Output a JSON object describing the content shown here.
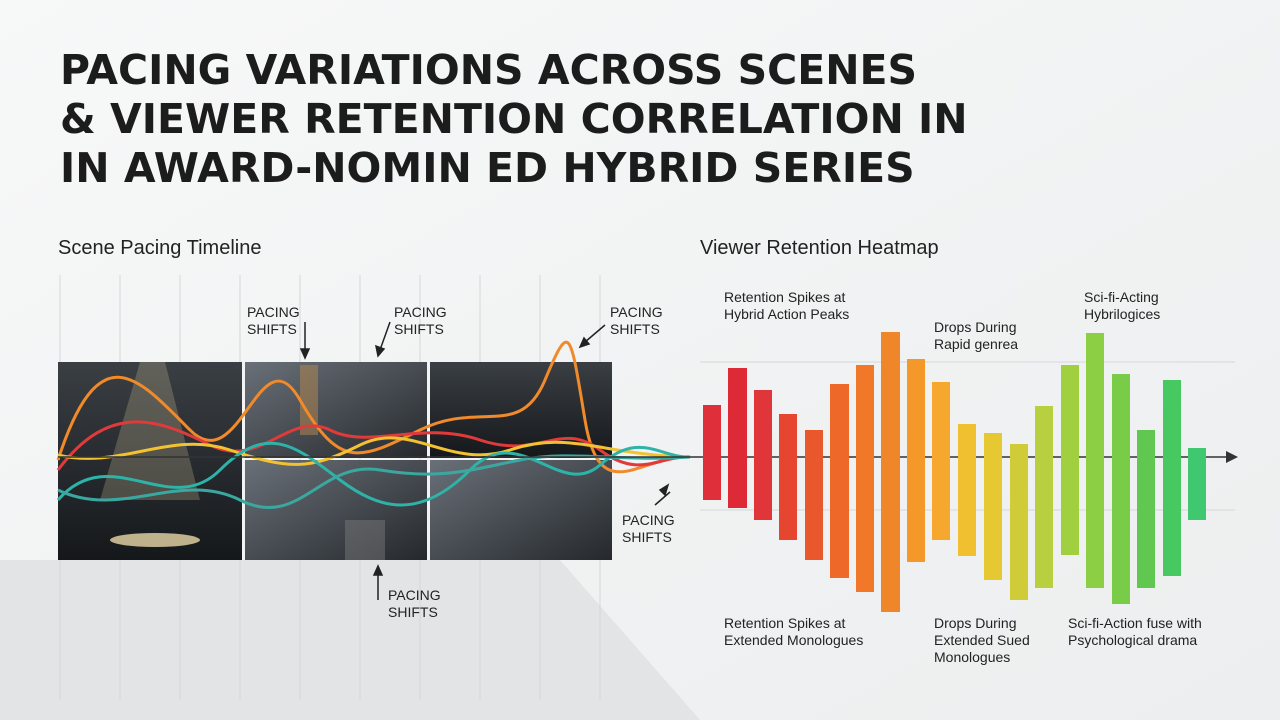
{
  "header": {
    "title_lines": [
      "PACING VARIATIONS ACROSS SCENES",
      "& VIEWER RETENTION CORRELATION IN",
      "IN AWARD-NOMIN ED HYBRID SERIES"
    ]
  },
  "sections": {
    "left": "Scene Pacing Timeline",
    "right": "Viewer Retention Heatmap"
  },
  "left_annotations": [
    [
      "PACING",
      "SHIFTS"
    ],
    [
      "PACING",
      "SHIFTS"
    ],
    [
      "PACING",
      "SHIFTS"
    ],
    [
      "PACING",
      "SHIFTS"
    ],
    [
      "PACING",
      "SHIFTS"
    ]
  ],
  "right_annotations": [
    [
      "Retention Spikes at",
      "Hybrid Action Peaks"
    ],
    [
      "Drops During",
      "Rapid genrea"
    ],
    [
      "Sci-fi-Acting",
      "Hybrilogices"
    ],
    [
      "Retention Spikes at",
      "Extended Monologues"
    ],
    [
      "Drops During",
      "Extended Sued",
      "Monologues"
    ],
    [
      "Sci-fi-Action fuse with",
      "Psychological drama"
    ]
  ]
}
